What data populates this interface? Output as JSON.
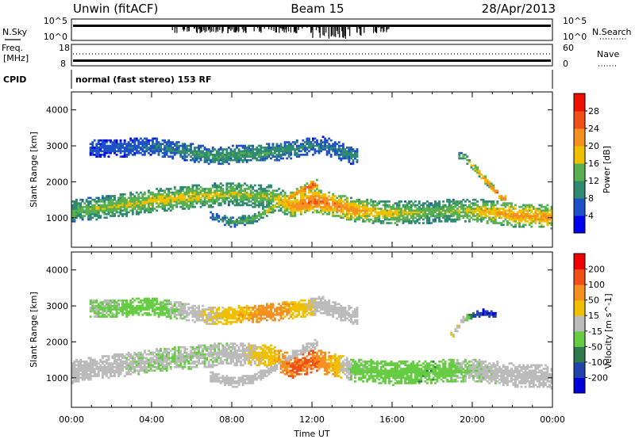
{
  "header": {
    "station": "Unwin (fitACF)",
    "beam": "Beam 15",
    "date": "28/Apr/2013"
  },
  "status_panels": {
    "nsky_label": "N.Sky",
    "nsky_ticks": [
      "10^5",
      "10^0"
    ],
    "nsearch_label": "N.Search",
    "nsearch_ticks": [
      "10^5",
      "10^0"
    ],
    "freq_label": "Freq.",
    "freq_unit": "[MHz]",
    "freq_ticks": [
      "18",
      "8"
    ],
    "nave_label": "Nave",
    "nave_ticks": [
      "60",
      "0"
    ],
    "cpid_label": "CPID",
    "cpid_text": "normal (fast stereo) 153 RF"
  },
  "chart_data": [
    {
      "type": "heatmap",
      "quantity": "power",
      "ylabel": "Slant Range [km]",
      "ylim": [
        180,
        4500
      ],
      "yticks": [
        "1000",
        "2000",
        "3000",
        "4000"
      ],
      "xlim_hours": [
        0,
        24
      ],
      "colorbar": {
        "label": "Power [dB]",
        "ticks": [
          "4",
          "8",
          "12",
          "16",
          "20",
          "24",
          "28"
        ],
        "range": [
          0,
          32
        ],
        "colors": [
          "#0000ee",
          "#1e50c8",
          "#2f8a70",
          "#58b050",
          "#f0c000",
          "#f39020",
          "#f05018",
          "#ee1100"
        ]
      },
      "features": [
        {
          "name": "main-ionospheric-band",
          "t": [
            0.0,
            2.0,
            4.0,
            6.0,
            8.0,
            10.0,
            11.0,
            12.0,
            13.0,
            14.0,
            16.0,
            18.0,
            20.0,
            22.0,
            24.0
          ],
          "range_km": [
            1150,
            1300,
            1450,
            1560,
            1650,
            1550,
            1300,
            1450,
            1350,
            1200,
            1100,
            1150,
            1200,
            1050,
            1000
          ],
          "width_km": 650,
          "power_db": [
            14,
            16,
            18,
            18,
            16,
            16,
            22,
            26,
            24,
            22,
            18,
            14,
            18,
            22,
            22
          ]
        },
        {
          "name": "lower-arc",
          "t": [
            7.0,
            8.0,
            9.0,
            10.0,
            11.0,
            12.0
          ],
          "range_km": [
            1000,
            850,
            950,
            1250,
            1600,
            1900
          ],
          "width_km": 280,
          "power_db": [
            8,
            12,
            14,
            18,
            22,
            26
          ]
        },
        {
          "name": "far-range-patches",
          "t": [
            1.0,
            4.0,
            7.0,
            10.0,
            12.5,
            14.0
          ],
          "range_km": [
            2900,
            2950,
            2700,
            2800,
            3000,
            2700
          ],
          "width_km": 500,
          "power_db": [
            6,
            8,
            12,
            12,
            8,
            10
          ]
        },
        {
          "name": "evening-slant-streak",
          "t": [
            19.5,
            20.0,
            20.5,
            21.0,
            21.5
          ],
          "range_km": [
            2700,
            2400,
            2100,
            1800,
            1500
          ],
          "width_km": 220,
          "power_db": [
            14,
            18,
            22,
            24,
            24
          ]
        }
      ]
    },
    {
      "type": "heatmap",
      "quantity": "velocity",
      "ylabel": "Slant Range [km]",
      "ylim": [
        180,
        4500
      ],
      "yticks": [
        "1000",
        "2000",
        "3000",
        "4000"
      ],
      "xlim_hours": [
        0,
        24
      ],
      "xticks": [
        "00:00",
        "04:00",
        "08:00",
        "12:00",
        "16:00",
        "20:00",
        "00:00"
      ],
      "xlabel": "Time UT",
      "colorbar": {
        "label": "Velocity [m s^-1]",
        "ticks": [
          "200",
          "100",
          "50",
          "15",
          "-15",
          "-50",
          "-100",
          "-200"
        ],
        "range": [
          -250,
          250
        ],
        "colors": [
          "#0000dd",
          "#2244aa",
          "#2e7a4e",
          "#66cc44",
          "#bbbbbb",
          "#f0c000",
          "#f39020",
          "#f05018",
          "#ee0000"
        ]
      },
      "features": [
        {
          "name": "main-flow-band",
          "t": [
            0.0,
            2.0,
            4.0,
            6.0,
            8.0,
            10.0,
            11.0,
            12.0,
            13.0,
            14.0,
            16.0,
            18.0,
            20.0,
            22.0,
            24.0
          ],
          "range_km": [
            1150,
            1300,
            1450,
            1560,
            1650,
            1550,
            1300,
            1450,
            1350,
            1200,
            1100,
            1150,
            1200,
            1050,
            1000
          ],
          "width_km": 650,
          "velocity": [
            0,
            -5,
            -20,
            -25,
            -10,
            60,
            150,
            140,
            80,
            -40,
            -60,
            -70,
            -20,
            0,
            0
          ]
        },
        {
          "name": "ground-scatter-arc",
          "t": [
            7.0,
            8.0,
            9.0,
            10.0,
            11.0,
            12.0
          ],
          "range_km": [
            1000,
            850,
            950,
            1250,
            1600,
            1900
          ],
          "width_km": 280,
          "velocity": [
            0,
            0,
            0,
            -5,
            0,
            5
          ]
        },
        {
          "name": "far-range-flow",
          "t": [
            1.0,
            4.0,
            7.0,
            10.0,
            12.5,
            14.0
          ],
          "range_km": [
            2900,
            2950,
            2700,
            2800,
            3000,
            2700
          ],
          "width_km": 500,
          "velocity": [
            -30,
            -60,
            30,
            120,
            0,
            0
          ]
        },
        {
          "name": "late-evening-flow",
          "t": [
            19.0,
            19.5,
            20.0,
            20.5,
            21.0
          ],
          "range_km": [
            2200,
            2600,
            2700,
            2800,
            2750
          ],
          "width_km": 180,
          "velocity": [
            40,
            20,
            -150,
            -200,
            -180
          ]
        }
      ]
    }
  ]
}
